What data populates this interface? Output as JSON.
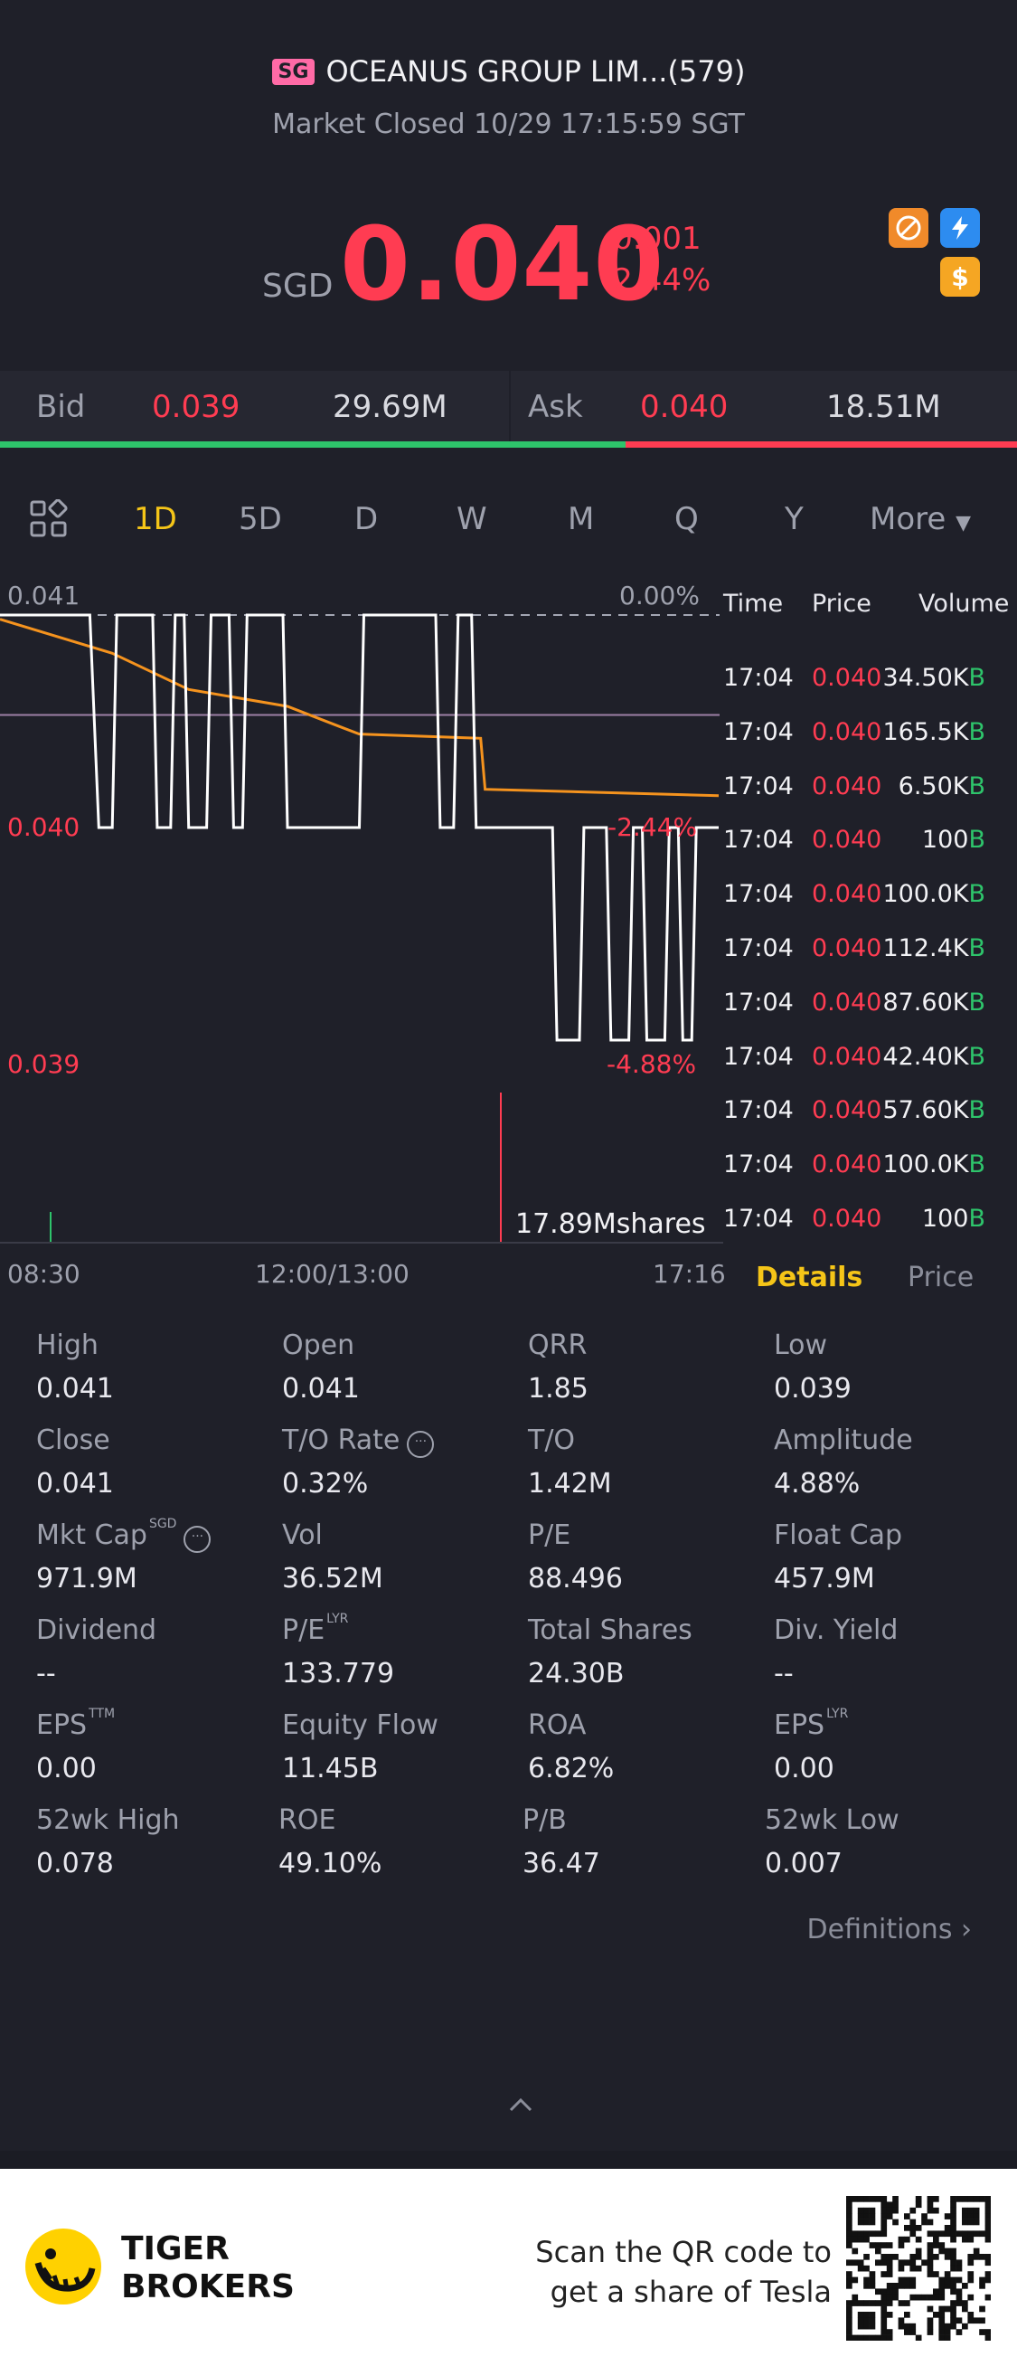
{
  "header": {
    "market_badge": "SG",
    "title": "OCEANUS GROUP LIM...(579)",
    "status": "Market Closed 10/29 17:15:59 SGT",
    "currency": "SGD",
    "price": "0.040",
    "change": "-0.001",
    "change_pct": "-2.44%",
    "icons": [
      "no-pattern-icon",
      "flash-icon",
      "dollar-icon"
    ]
  },
  "bidask": {
    "bid_label": "Bid",
    "bid_price": "0.039",
    "bid_vol": "29.69M",
    "ask_label": "Ask",
    "ask_price": "0.040",
    "ask_vol": "18.51M",
    "bid_ratio": 0.615
  },
  "tabs": [
    "1D",
    "5D",
    "D",
    "W",
    "M",
    "Q",
    "Y",
    "More"
  ],
  "active_tab": "1D",
  "chart_labels": {
    "y_top": "0.041",
    "y_mid": "0.040",
    "y_bot": "0.039",
    "pct_top": "0.00%",
    "pct_mid": "-2.44%",
    "pct_bot": "-4.88%",
    "vol_label": "17.89Mshares",
    "x_start": "08:30",
    "x_mid": "12:00/13:00",
    "x_end": "17:16"
  },
  "chart_data": {
    "type": "line",
    "ylim": [
      0.039,
      0.041
    ],
    "series": [],
    "x": [
      0,
      2.0,
      2.2,
      2.5,
      2.6,
      3.4,
      3.5,
      3.8,
      3.9,
      4.1,
      4.2,
      4.6,
      4.7,
      5.1,
      5.2,
      5.4,
      5.5,
      6.3,
      6.4,
      8.0,
      8.1,
      9.7,
      9.8,
      10.1,
      10.2,
      10.5,
      10.6,
      10.7,
      10.8,
      12.3,
      12.4,
      12.9,
      13.0,
      13.5,
      13.6,
      14.0,
      14.1,
      14.3,
      14.4,
      14.8,
      14.9,
      15.1,
      15.2,
      15.4,
      15.5,
      16.0
    ],
    "y": [
      0.041,
      0.041,
      0.04,
      0.04,
      0.041,
      0.041,
      0.04,
      0.04,
      0.041,
      0.041,
      0.04,
      0.04,
      0.041,
      0.041,
      0.04,
      0.04,
      0.041,
      0.041,
      0.04,
      0.04,
      0.041,
      0.041,
      0.04,
      0.04,
      0.041,
      0.041,
      0.04,
      0.04,
      0.04,
      0.04,
      0.039,
      0.039,
      0.04,
      0.04,
      0.039,
      0.039,
      0.04,
      0.04,
      0.039,
      0.039,
      0.04,
      0.04,
      0.039,
      0.039,
      0.04,
      0.04
    ],
    "avg_x": [
      0,
      2.5,
      4.2,
      6.4,
      7.5,
      8.0,
      10.7,
      10.8,
      16.0
    ],
    "avg_y": [
      0.04098,
      0.04082,
      0.04065,
      0.04057,
      0.04048,
      0.04044,
      0.04042,
      0.04018,
      0.04015
    ],
    "prev_close": 0.041,
    "volume_spike": "17.89Mshares"
  },
  "trades": {
    "headers": [
      "Time",
      "Price",
      "Volume"
    ],
    "rows": [
      {
        "time": "17:04",
        "price": "0.040",
        "vol": "34.50K",
        "side": "B"
      },
      {
        "time": "17:04",
        "price": "0.040",
        "vol": "165.5K",
        "side": "B"
      },
      {
        "time": "17:04",
        "price": "0.040",
        "vol": "6.50K",
        "side": "B"
      },
      {
        "time": "17:04",
        "price": "0.040",
        "vol": "100",
        "side": "B"
      },
      {
        "time": "17:04",
        "price": "0.040",
        "vol": "100.0K",
        "side": "B"
      },
      {
        "time": "17:04",
        "price": "0.040",
        "vol": "112.4K",
        "side": "B"
      },
      {
        "time": "17:04",
        "price": "0.040",
        "vol": "87.60K",
        "side": "B"
      },
      {
        "time": "17:04",
        "price": "0.040",
        "vol": "42.40K",
        "side": "B"
      },
      {
        "time": "17:04",
        "price": "0.040",
        "vol": "57.60K",
        "side": "B"
      },
      {
        "time": "17:04",
        "price": "0.040",
        "vol": "100.0K",
        "side": "B"
      },
      {
        "time": "17:04",
        "price": "0.040",
        "vol": "100",
        "side": "B"
      }
    ]
  },
  "detail_tabs": {
    "details": "Details",
    "price": "Price"
  },
  "details": [
    [
      {
        "l": "High",
        "v": "0.041"
      },
      {
        "l": "Open",
        "v": "0.041"
      },
      {
        "l": "QRR",
        "v": "1.85"
      },
      {
        "l": "Low",
        "v": "0.039"
      }
    ],
    [
      {
        "l": "Close",
        "v": "0.041"
      },
      {
        "l": "T/O Rate",
        "v": "0.32%"
      },
      {
        "l": "T/O",
        "v": "1.42M"
      },
      {
        "l": "Amplitude",
        "v": "4.88%"
      }
    ],
    [
      {
        "l": "Mkt Cap",
        "v": "971.9M"
      },
      {
        "l": "Vol",
        "v": "36.52M"
      },
      {
        "l": "P/E",
        "v": "88.496"
      },
      {
        "l": "Float Cap",
        "v": "457.9M"
      }
    ],
    [
      {
        "l": "Dividend",
        "v": "--"
      },
      {
        "l": "P/E",
        "v": "133.779"
      },
      {
        "l": "Total Shares",
        "v": "24.30B"
      },
      {
        "l": "Div. Yield",
        "v": "--"
      }
    ],
    [
      {
        "l": "EPS",
        "v": "0.00"
      },
      {
        "l": "Equity Flow",
        "v": "11.45B"
      },
      {
        "l": "ROA",
        "v": "6.82%"
      },
      {
        "l": "EPS",
        "v": "0.00"
      }
    ],
    [
      {
        "l": "52wk High",
        "v": "0.078"
      },
      {
        "l": "ROE",
        "v": "49.10%"
      },
      {
        "l": "P/B",
        "v": "36.47"
      },
      {
        "l": "52wk Low",
        "v": "0.007"
      }
    ]
  ],
  "detail_sups": {
    "mktcap": "SGD",
    "pe_lyr": "LYR",
    "eps_ttm": "TTM",
    "eps_lyr": "LYR"
  },
  "definitions": "Definitions",
  "footer": {
    "brand_line1": "TIGER",
    "brand_line2": "BROKERS",
    "promo_line1": "Scan the QR code to",
    "promo_line2": "get a share of Tesla"
  }
}
